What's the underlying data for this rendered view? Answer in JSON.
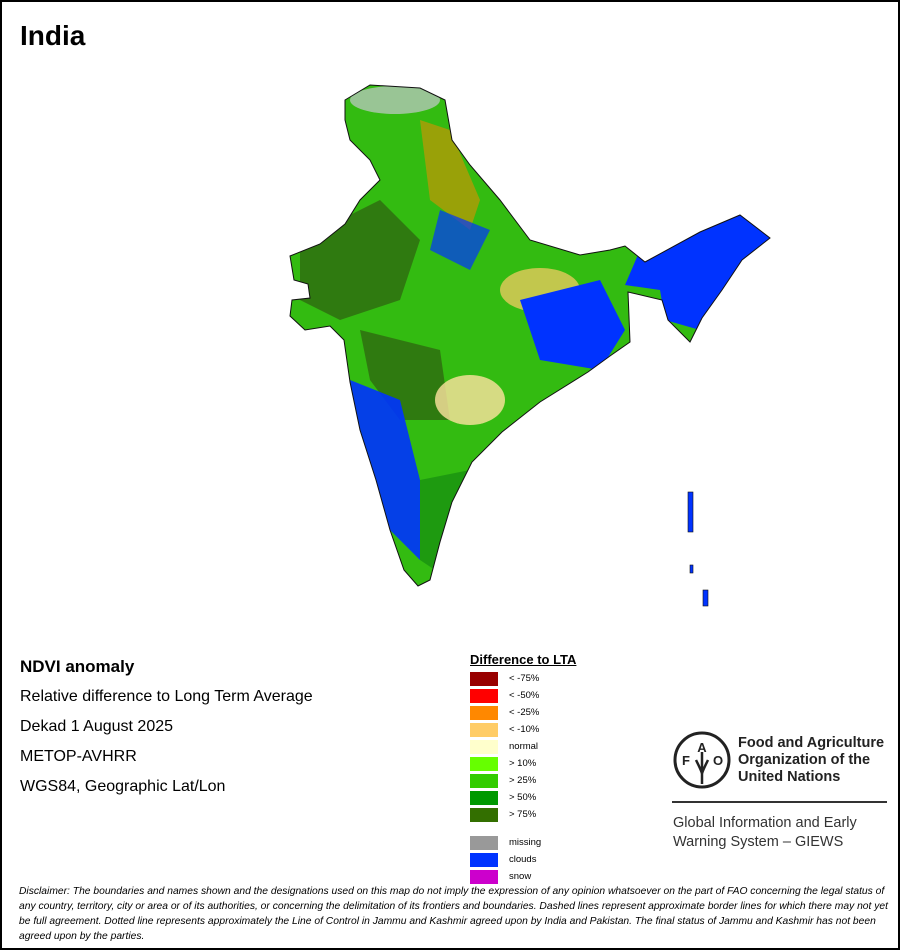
{
  "title": "India",
  "info": {
    "heading": "NDVI anomaly",
    "line1": "Relative difference to Long Term Average",
    "line2": "Dekad 1 August 2025",
    "line3": "METOP-AVHRR",
    "line4": "WGS84, Geographic Lat/Lon"
  },
  "legend": {
    "title": "Difference to LTA",
    "items": [
      {
        "label": "< -75%",
        "color": "#990000"
      },
      {
        "label": "< -50%",
        "color": "#ff0000"
      },
      {
        "label": "< -25%",
        "color": "#ff8800"
      },
      {
        "label": "< -10%",
        "color": "#ffcc66"
      },
      {
        "label": "normal",
        "color": "#ffffcc"
      },
      {
        "label": "> 10%",
        "color": "#66ff00"
      },
      {
        "label": "> 25%",
        "color": "#33cc00"
      },
      {
        "label": "> 50%",
        "color": "#009900"
      },
      {
        "label": "> 75%",
        "color": "#336f00"
      }
    ],
    "extra": [
      {
        "label": "missing",
        "color": "#999999"
      },
      {
        "label": "clouds",
        "color": "#0033ff"
      },
      {
        "label": "snow",
        "color": "#cc00cc"
      }
    ]
  },
  "org": {
    "name_line1": "Food and Agriculture",
    "name_line2": "Organization of the",
    "name_line3": "United Nations",
    "logo_text": "FAO FIAT PANIS",
    "giews_line1": "Global Information and Early",
    "giews_line2": "Warning System – GIEWS"
  },
  "disclaimer": "Disclaimer: The boundaries and names shown and the designations used on this map do not imply the expression of any opinion whatsoever on the part of FAO concerning the legal status of any country, territory, city or area or of its authorities, or concerning the delimitation of its frontiers and boundaries. Dashed lines represent approximate border lines for which there may not yet be full agreement. Dotted line represents approximately the Line of Control in Jammu and Kashmir agreed upon by India and Pakistan. The final status of Jammu and Kashmir has not been agreed upon by the parties."
}
